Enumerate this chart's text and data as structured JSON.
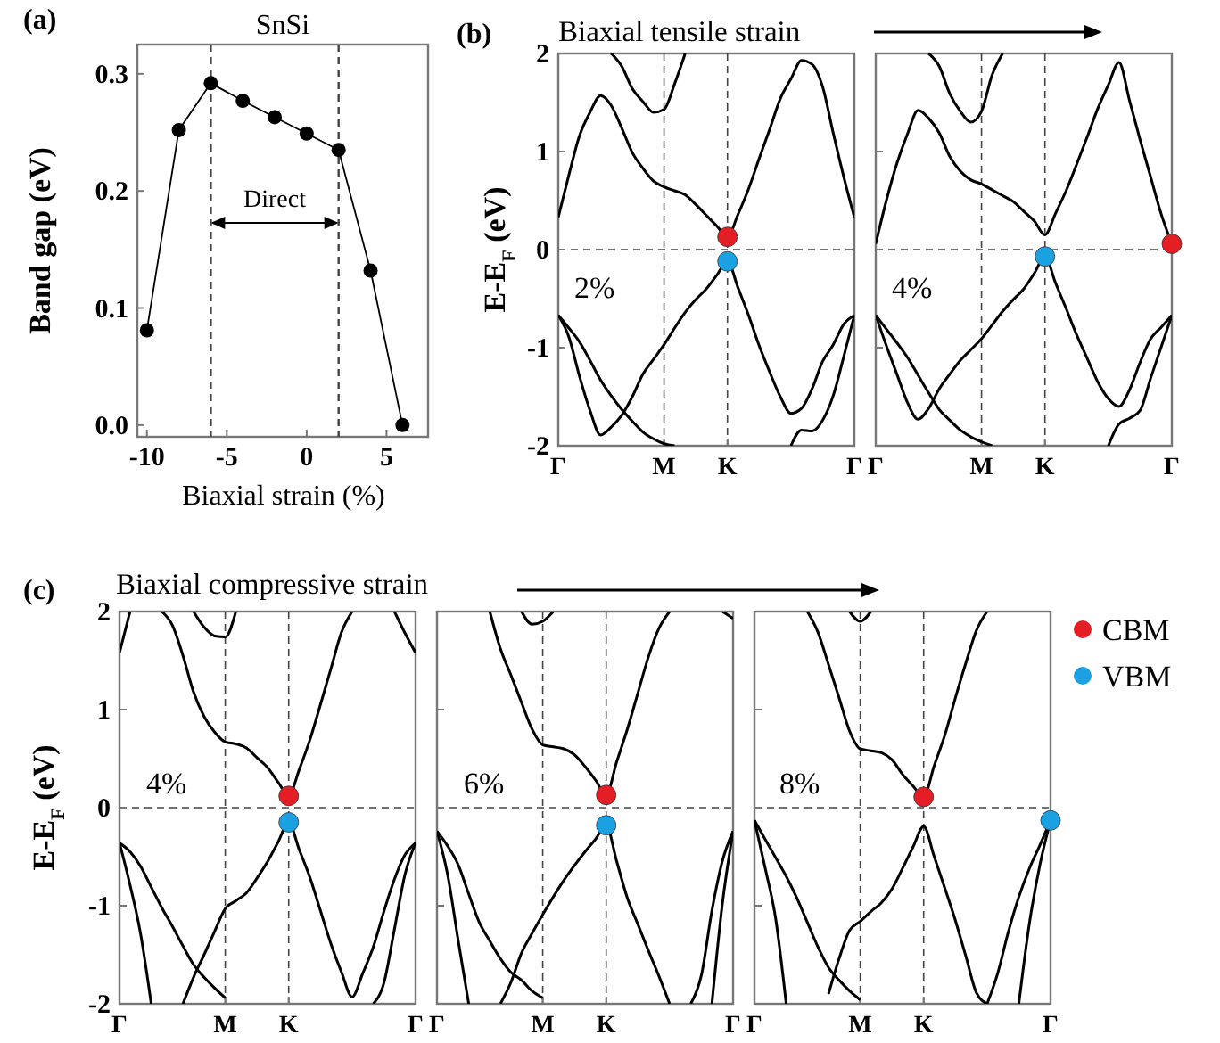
{
  "chart_data": [
    {
      "type": "line",
      "title": "SnSi",
      "xlabel": "Biaxial strain (%)",
      "ylabel": "Band gap (eV)",
      "annotations": [
        "(a)",
        "Direct"
      ],
      "x": [
        -10,
        -8,
        -6,
        -4,
        -2,
        0,
        2,
        4,
        6
      ],
      "values": [
        0.081,
        0.252,
        0.292,
        0.277,
        0.263,
        0.249,
        0.235,
        0.132,
        0.0
      ],
      "color": "#000000",
      "marker": "circle",
      "xlim": [
        -10.6,
        7.6
      ],
      "xticks": [
        -10,
        -5,
        0,
        5
      ],
      "ylim": [
        -0.01,
        0.325
      ],
      "yticks": [
        {
          "value": 0,
          "label": "0.0"
        },
        0.1,
        0.2,
        0.3
      ],
      "ref_lines": [
        {
          "axis": "x",
          "value": -6,
          "line_style": "dashed"
        },
        {
          "axis": "x",
          "value": 2,
          "line_style": "dashed"
        }
      ]
    },
    {
      "type": "line",
      "title": "Biaxial tensile strain",
      "ylabel": "E-E$_{F}$ (eV)",
      "annotations": [
        "(b)",
        "2%"
      ],
      "categories": [
        "Γ",
        null,
        null,
        null,
        null,
        null,
        null,
        null,
        null,
        null,
        "M",
        null,
        null,
        null,
        null,
        null,
        "K",
        null,
        null,
        null,
        null,
        null,
        null,
        null,
        null,
        null,
        null,
        null,
        "Γ"
      ],
      "ylim": [
        -2,
        2
      ],
      "yticks": [
        -2,
        -1,
        0,
        1,
        2
      ],
      "ref_lines": [
        {
          "axis": "x",
          "value": "M",
          "line_style": "dashed"
        },
        {
          "axis": "x",
          "value": "K",
          "line_style": "dashed"
        },
        {
          "axis": "y",
          "value": 0,
          "line_style": "dashed"
        }
      ],
      "series": [
        {
          "color": "#000000",
          "values": [
            0.33,
            0.76,
            1.16,
            1.4,
            1.57,
            1.47,
            1.24,
            0.99,
            0.83,
            0.7,
            0.64,
            0.6,
            0.56,
            0.46,
            0.35,
            0.24,
            0.13,
            0.36,
            0.62,
            0.93,
            1.23,
            1.54,
            1.74,
            1.93,
            1.89,
            1.66,
            1.19,
            0.74,
            0.33
          ]
        },
        {
          "color": "#000000",
          "values": [
            null,
            null,
            null,
            null,
            null,
            2.0,
            1.87,
            1.64,
            1.51,
            1.4,
            1.43,
            1.69,
            2.0,
            null,
            null,
            null,
            null,
            null,
            null,
            null,
            null,
            null,
            null,
            null,
            null,
            null,
            null,
            null,
            null
          ]
        },
        {
          "color": "#000000",
          "values": [
            -0.67,
            -0.89,
            -1.29,
            -1.64,
            -1.89,
            -1.81,
            -1.69,
            -1.5,
            -1.27,
            -1.12,
            -0.97,
            -0.8,
            -0.64,
            -0.51,
            -0.4,
            -0.26,
            -0.12,
            -0.39,
            -0.67,
            -0.98,
            -1.25,
            -1.5,
            -1.67,
            -1.62,
            -1.42,
            -1.14,
            -0.97,
            -0.76,
            -0.67
          ]
        },
        {
          "color": "#000000",
          "values": [
            -0.67,
            -0.8,
            -0.94,
            -1.13,
            -1.33,
            -1.49,
            -1.63,
            -1.75,
            -1.86,
            -1.93,
            -1.98,
            -2.0,
            null,
            null,
            null,
            null,
            null,
            null,
            null,
            null,
            null,
            null,
            null,
            null,
            null,
            null,
            null,
            null,
            null
          ]
        },
        {
          "color": "#000000",
          "values": [
            null,
            null,
            null,
            null,
            null,
            null,
            null,
            null,
            null,
            null,
            null,
            null,
            null,
            null,
            null,
            null,
            null,
            null,
            null,
            null,
            null,
            null,
            -2.0,
            -1.84,
            -1.85,
            -1.74,
            -1.49,
            -1.09,
            -0.67
          ]
        },
        {
          "type": "scatter",
          "color": "#e31e24",
          "values": [
            null,
            null,
            null,
            null,
            null,
            null,
            null,
            null,
            null,
            null,
            null,
            null,
            null,
            null,
            null,
            null,
            0.13,
            null,
            null,
            null,
            null,
            null,
            null,
            null,
            null,
            null,
            null,
            null,
            null
          ]
        },
        {
          "type": "scatter",
          "color": "#1ba1e2",
          "values": [
            null,
            null,
            null,
            null,
            null,
            null,
            null,
            null,
            null,
            null,
            null,
            null,
            null,
            null,
            null,
            null,
            -0.12,
            null,
            null,
            null,
            null,
            null,
            null,
            null,
            null,
            null,
            null,
            null,
            null
          ]
        }
      ]
    },
    {
      "type": "line",
      "annotations": [
        "4%"
      ],
      "tick_labels": "x",
      "categories": [
        "Γ",
        null,
        null,
        null,
        null,
        null,
        null,
        null,
        null,
        null,
        "M",
        null,
        null,
        null,
        null,
        null,
        "K",
        null,
        null,
        null,
        null,
        null,
        null,
        null,
        null,
        null,
        null,
        null,
        "Γ"
      ],
      "ylim": [
        -2,
        2
      ],
      "yticks": [
        -2,
        -1,
        0,
        1,
        2
      ],
      "ref_lines": [
        {
          "axis": "x",
          "value": "M",
          "line_style": "dashed"
        },
        {
          "axis": "x",
          "value": "K",
          "line_style": "dashed"
        },
        {
          "axis": "y",
          "value": 0,
          "line_style": "dashed"
        }
      ],
      "series": [
        {
          "color": "#000000",
          "values": [
            0.06,
            0.5,
            0.88,
            1.18,
            1.42,
            1.34,
            1.19,
            0.95,
            0.8,
            0.71,
            0.67,
            0.61,
            0.55,
            0.49,
            0.39,
            0.29,
            0.15,
            0.37,
            0.6,
            0.87,
            1.15,
            1.44,
            1.68,
            1.91,
            1.52,
            1.12,
            0.74,
            0.36,
            0.06
          ]
        },
        {
          "color": "#000000",
          "values": [
            null,
            null,
            null,
            null,
            null,
            2.0,
            1.87,
            1.59,
            1.41,
            1.3,
            1.41,
            1.78,
            2.0,
            null,
            null,
            null,
            null,
            null,
            null,
            null,
            null,
            null,
            null,
            null,
            null,
            null,
            null,
            null,
            null
          ]
        },
        {
          "color": "#000000",
          "values": [
            -0.67,
            -0.98,
            -1.27,
            -1.56,
            -1.73,
            -1.62,
            -1.42,
            -1.27,
            -1.13,
            -1.02,
            -0.91,
            -0.77,
            -0.63,
            -0.51,
            -0.4,
            -0.24,
            -0.07,
            -0.34,
            -0.6,
            -0.87,
            -1.11,
            -1.35,
            -1.52,
            -1.6,
            -1.43,
            -1.15,
            -0.91,
            -0.79,
            -0.67
          ]
        },
        {
          "color": "#000000",
          "values": [
            -0.67,
            -0.81,
            -0.95,
            -1.1,
            -1.28,
            -1.46,
            -1.63,
            -1.74,
            -1.84,
            -1.91,
            -1.96,
            -2.0,
            null,
            null,
            null,
            null,
            null,
            null,
            null,
            null,
            null,
            null,
            null,
            null,
            null,
            null,
            null,
            null,
            null
          ]
        },
        {
          "color": "#000000",
          "values": [
            null,
            null,
            null,
            null,
            null,
            null,
            null,
            null,
            null,
            null,
            null,
            null,
            null,
            null,
            null,
            null,
            null,
            null,
            null,
            null,
            null,
            null,
            -2.0,
            -1.78,
            -1.72,
            -1.64,
            -1.31,
            -0.99,
            -0.67
          ]
        },
        {
          "type": "scatter",
          "color": "#1ba1e2",
          "values": [
            null,
            null,
            null,
            null,
            null,
            null,
            null,
            null,
            null,
            null,
            null,
            null,
            null,
            null,
            null,
            null,
            -0.07,
            null,
            null,
            null,
            null,
            null,
            null,
            null,
            null,
            null,
            null,
            null,
            null
          ]
        },
        {
          "type": "scatter",
          "color": "#e31e24",
          "values": [
            null,
            null,
            null,
            null,
            null,
            null,
            null,
            null,
            null,
            null,
            null,
            null,
            null,
            null,
            null,
            null,
            null,
            null,
            null,
            null,
            null,
            null,
            null,
            null,
            null,
            null,
            null,
            null,
            0.06
          ]
        }
      ]
    },
    {
      "type": "line",
      "title": "Biaxial compressive strain",
      "ylabel": "E-E$_{F}$ (eV)",
      "annotations": [
        "(c)",
        "4%"
      ],
      "categories": [
        "Γ",
        null,
        null,
        null,
        null,
        null,
        null,
        null,
        null,
        null,
        "M",
        null,
        null,
        null,
        null,
        null,
        "K",
        null,
        null,
        null,
        null,
        null,
        null,
        null,
        null,
        null,
        null,
        null,
        "Γ"
      ],
      "ylim": [
        -2,
        2
      ],
      "yticks": [
        -2,
        -1,
        0,
        1,
        2
      ],
      "ref_lines": [
        {
          "axis": "x",
          "value": "M",
          "line_style": "dashed"
        },
        {
          "axis": "x",
          "value": "K",
          "line_style": "dashed"
        },
        {
          "axis": "y",
          "value": 0,
          "line_style": "dashed"
        }
      ],
      "series": [
        {
          "color": "#000000",
          "values": [
            null,
            null,
            null,
            null,
            2.0,
            1.86,
            1.55,
            1.18,
            0.93,
            0.77,
            0.67,
            0.65,
            0.61,
            0.51,
            0.41,
            0.26,
            0.12,
            0.39,
            0.69,
            1.05,
            1.42,
            1.79,
            2.0,
            null,
            null,
            null,
            null,
            null,
            null
          ]
        },
        {
          "color": "#000000",
          "values": [
            1.58,
            2.0,
            null,
            null,
            null,
            null,
            null,
            null,
            null,
            null,
            null,
            null,
            null,
            null,
            null,
            null,
            null,
            null,
            null,
            null,
            null,
            null,
            null,
            null,
            null,
            null,
            null,
            null,
            null
          ]
        },
        {
          "color": "#000000",
          "values": [
            null,
            null,
            null,
            null,
            null,
            null,
            null,
            null,
            null,
            null,
            null,
            null,
            null,
            null,
            null,
            null,
            null,
            null,
            null,
            null,
            null,
            null,
            null,
            null,
            null,
            null,
            2.0,
            1.78,
            1.58
          ]
        },
        {
          "color": "#000000",
          "values": [
            null,
            null,
            null,
            null,
            null,
            null,
            null,
            2.0,
            1.84,
            1.75,
            1.74,
            2.0,
            null,
            null,
            null,
            null,
            null,
            null,
            null,
            null,
            null,
            null,
            null,
            null,
            null,
            null,
            null,
            null,
            null
          ]
        },
        {
          "color": "#000000",
          "values": [
            -0.36,
            -0.79,
            -1.29,
            -2.0,
            null,
            null,
            null,
            null,
            null,
            null,
            null,
            null,
            null,
            null,
            null,
            null,
            null,
            null,
            null,
            null,
            null,
            null,
            null,
            null,
            null,
            null,
            null,
            null,
            null
          ]
        },
        {
          "color": "#000000",
          "values": [
            -0.36,
            -0.45,
            -0.6,
            -0.81,
            -1.02,
            -1.21,
            -1.41,
            -1.6,
            -1.73,
            -1.84,
            -1.94,
            null,
            null,
            null,
            null,
            null,
            null,
            null,
            null,
            null,
            null,
            null,
            null,
            null,
            null,
            null,
            null,
            null,
            null
          ]
        },
        {
          "color": "#000000",
          "values": [
            null,
            null,
            null,
            null,
            null,
            null,
            -2.0,
            -1.73,
            -1.5,
            -1.26,
            -1.03,
            -0.95,
            -0.87,
            -0.72,
            -0.55,
            -0.35,
            -0.15,
            -0.43,
            -0.71,
            -1.05,
            -1.39,
            -1.68,
            -1.93,
            -1.69,
            -1.42,
            -1.06,
            -0.73,
            -0.48,
            -0.36
          ]
        },
        {
          "color": "#000000",
          "values": [
            null,
            null,
            null,
            null,
            null,
            null,
            null,
            null,
            null,
            null,
            null,
            null,
            null,
            null,
            null,
            null,
            null,
            null,
            null,
            null,
            null,
            null,
            null,
            null,
            -2.0,
            -1.79,
            -1.24,
            -0.68,
            -0.36
          ]
        },
        {
          "type": "scatter",
          "color": "#e31e24",
          "values": [
            null,
            null,
            null,
            null,
            null,
            null,
            null,
            null,
            null,
            null,
            null,
            null,
            null,
            null,
            null,
            null,
            0.12,
            null,
            null,
            null,
            null,
            null,
            null,
            null,
            null,
            null,
            null,
            null,
            null
          ]
        },
        {
          "type": "scatter",
          "color": "#1ba1e2",
          "values": [
            null,
            null,
            null,
            null,
            null,
            null,
            null,
            null,
            null,
            null,
            null,
            null,
            null,
            null,
            null,
            null,
            -0.15,
            null,
            null,
            null,
            null,
            null,
            null,
            null,
            null,
            null,
            null,
            null,
            null
          ]
        }
      ]
    },
    {
      "type": "line",
      "annotations": [
        "6%"
      ],
      "tick_labels": "x",
      "categories": [
        "Γ",
        null,
        null,
        null,
        null,
        null,
        null,
        null,
        null,
        null,
        "M",
        null,
        null,
        null,
        null,
        null,
        "K",
        null,
        null,
        null,
        null,
        null,
        null,
        null,
        null,
        null,
        null,
        null,
        "Γ"
      ],
      "ylim": [
        -2,
        2
      ],
      "yticks": [
        -2,
        -1,
        0,
        1,
        2
      ],
      "ref_lines": [
        {
          "axis": "x",
          "value": "M",
          "line_style": "dashed"
        },
        {
          "axis": "x",
          "value": "K",
          "line_style": "dashed"
        },
        {
          "axis": "y",
          "value": 0,
          "line_style": "dashed"
        }
      ],
      "series": [
        {
          "color": "#000000",
          "values": [
            null,
            null,
            null,
            null,
            null,
            2.0,
            1.62,
            1.35,
            1.07,
            0.8,
            0.64,
            0.62,
            0.6,
            0.54,
            0.42,
            0.28,
            0.13,
            0.47,
            0.8,
            1.17,
            1.54,
            1.83,
            2.0,
            null,
            null,
            null,
            null,
            null,
            null
          ]
        },
        {
          "color": "#000000",
          "values": [
            null,
            null,
            null,
            null,
            null,
            null,
            null,
            null,
            2.0,
            1.87,
            1.9,
            2.0,
            null,
            null,
            null,
            null,
            null,
            null,
            null,
            null,
            null,
            null,
            null,
            null,
            null,
            null,
            null,
            null,
            null
          ]
        },
        {
          "color": "#000000",
          "values": [
            null,
            null,
            null,
            null,
            null,
            null,
            null,
            null,
            null,
            null,
            null,
            null,
            null,
            null,
            null,
            null,
            null,
            null,
            null,
            null,
            null,
            null,
            null,
            null,
            null,
            null,
            null,
            2.0,
            1.93
          ]
        },
        {
          "color": "#000000",
          "values": [
            -0.24,
            -0.68,
            -1.35,
            -2.0,
            null,
            null,
            null,
            null,
            null,
            null,
            null,
            null,
            null,
            null,
            null,
            null,
            null,
            null,
            null,
            null,
            null,
            null,
            null,
            null,
            null,
            null,
            null,
            null,
            null
          ]
        },
        {
          "color": "#000000",
          "values": [
            -0.24,
            -0.39,
            -0.58,
            -0.88,
            -1.17,
            -1.36,
            -1.54,
            -1.68,
            -1.76,
            -1.87,
            -1.94,
            null,
            null,
            null,
            null,
            null,
            null,
            null,
            null,
            null,
            null,
            null,
            null,
            null,
            null,
            null,
            null,
            null,
            null
          ]
        },
        {
          "color": "#000000",
          "values": [
            null,
            null,
            null,
            null,
            null,
            null,
            -2.0,
            -1.78,
            -1.48,
            -1.28,
            -1.09,
            -0.91,
            -0.74,
            -0.59,
            -0.45,
            -0.32,
            -0.18,
            -0.55,
            -0.92,
            -1.19,
            -1.46,
            -1.72,
            -2.0,
            null,
            null,
            null,
            null,
            null,
            null
          ]
        },
        {
          "color": "#000000",
          "values": [
            null,
            null,
            null,
            null,
            null,
            null,
            null,
            null,
            null,
            null,
            null,
            null,
            null,
            null,
            null,
            null,
            null,
            null,
            null,
            null,
            null,
            null,
            null,
            null,
            -2.0,
            -1.71,
            -1.05,
            -0.54,
            -0.24
          ]
        },
        {
          "color": "#000000",
          "values": [
            null,
            null,
            null,
            null,
            null,
            null,
            null,
            null,
            null,
            null,
            null,
            null,
            null,
            null,
            null,
            null,
            null,
            null,
            null,
            null,
            null,
            null,
            null,
            null,
            null,
            null,
            -2.0,
            -0.97,
            -0.24
          ]
        },
        {
          "type": "scatter",
          "color": "#e31e24",
          "values": [
            null,
            null,
            null,
            null,
            null,
            null,
            null,
            null,
            null,
            null,
            null,
            null,
            null,
            null,
            null,
            null,
            0.13,
            null,
            null,
            null,
            null,
            null,
            null,
            null,
            null,
            null,
            null,
            null,
            null
          ]
        },
        {
          "type": "scatter",
          "color": "#1ba1e2",
          "values": [
            null,
            null,
            null,
            null,
            null,
            null,
            null,
            null,
            null,
            null,
            null,
            null,
            null,
            null,
            null,
            null,
            -0.18,
            null,
            null,
            null,
            null,
            null,
            null,
            null,
            null,
            null,
            null,
            null,
            null
          ]
        }
      ]
    },
    {
      "type": "line",
      "annotations": [
        "8%"
      ],
      "tick_labels": "x",
      "legend": "right",
      "categories": [
        "Γ",
        null,
        null,
        null,
        null,
        null,
        null,
        null,
        null,
        null,
        "M",
        null,
        null,
        null,
        null,
        null,
        "K",
        null,
        null,
        null,
        null,
        null,
        null,
        null,
        null,
        null,
        null,
        null,
        "Γ"
      ],
      "ylim": [
        -2,
        2
      ],
      "yticks": [
        -2,
        -1,
        0,
        1,
        2
      ],
      "ref_lines": [
        {
          "axis": "x",
          "value": "M",
          "line_style": "dashed"
        },
        {
          "axis": "x",
          "value": "K",
          "line_style": "dashed"
        },
        {
          "axis": "y",
          "value": 0,
          "line_style": "dashed"
        }
      ],
      "series": [
        {
          "color": "#000000",
          "values": [
            null,
            null,
            null,
            null,
            null,
            2.0,
            1.79,
            1.46,
            1.12,
            0.78,
            0.6,
            0.58,
            0.56,
            0.49,
            0.34,
            0.22,
            0.11,
            0.43,
            0.74,
            1.12,
            1.48,
            1.81,
            2.0,
            null,
            null,
            null,
            null,
            null,
            null
          ]
        },
        {
          "color": "#000000",
          "values": [
            null,
            null,
            null,
            null,
            null,
            null,
            null,
            null,
            null,
            2.0,
            1.9,
            2.0,
            null,
            null,
            null,
            null,
            null,
            null,
            null,
            null,
            null,
            null,
            null,
            null,
            null,
            null,
            null,
            null,
            null
          ]
        },
        {
          "color": "#000000",
          "values": [
            -0.13,
            -0.61,
            -1.13,
            -2.0,
            null,
            null,
            null,
            null,
            null,
            null,
            null,
            null,
            null,
            null,
            null,
            null,
            null,
            null,
            null,
            null,
            null,
            null,
            null,
            null,
            null,
            null,
            null,
            null,
            null
          ]
        },
        {
          "color": "#000000",
          "values": [
            -0.13,
            -0.32,
            -0.51,
            -0.7,
            -0.92,
            -1.17,
            -1.42,
            -1.63,
            -1.76,
            -1.87,
            -1.96,
            null,
            null,
            null,
            null,
            null,
            null,
            null,
            null,
            null,
            null,
            null,
            null,
            null,
            null,
            null,
            null,
            null,
            null
          ]
        },
        {
          "color": "#000000",
          "values": [
            null,
            null,
            null,
            null,
            null,
            null,
            null,
            -1.9,
            -1.54,
            -1.25,
            -1.16,
            -1.06,
            -0.97,
            -0.83,
            -0.62,
            -0.4,
            -0.19,
            -0.5,
            -0.82,
            -1.15,
            -1.52,
            -1.89,
            -2.0,
            null,
            null,
            null,
            null,
            null,
            null
          ]
        },
        {
          "color": "#000000",
          "values": [
            null,
            null,
            null,
            null,
            null,
            null,
            null,
            null,
            null,
            null,
            null,
            null,
            null,
            null,
            null,
            null,
            null,
            null,
            null,
            null,
            null,
            null,
            -2.0,
            -1.69,
            -1.27,
            -0.91,
            -0.62,
            -0.38,
            -0.13
          ]
        },
        {
          "color": "#000000",
          "values": [
            null,
            null,
            null,
            null,
            null,
            null,
            null,
            null,
            null,
            null,
            null,
            null,
            null,
            null,
            null,
            null,
            null,
            null,
            null,
            null,
            null,
            null,
            null,
            null,
            null,
            -2.0,
            -1.18,
            -0.58,
            -0.13
          ]
        },
        {
          "type": "scatter",
          "name": "CBM",
          "color": "#e31e24",
          "values": [
            null,
            null,
            null,
            null,
            null,
            null,
            null,
            null,
            null,
            null,
            null,
            null,
            null,
            null,
            null,
            null,
            0.11,
            null,
            null,
            null,
            null,
            null,
            null,
            null,
            null,
            null,
            null,
            null,
            null
          ]
        },
        {
          "type": "scatter",
          "name": "VBM",
          "color": "#1ba1e2",
          "values": [
            null,
            null,
            null,
            null,
            null,
            null,
            null,
            null,
            null,
            null,
            null,
            null,
            null,
            null,
            null,
            null,
            null,
            null,
            null,
            null,
            null,
            null,
            null,
            null,
            null,
            null,
            null,
            null,
            -0.13
          ]
        }
      ]
    }
  ]
}
